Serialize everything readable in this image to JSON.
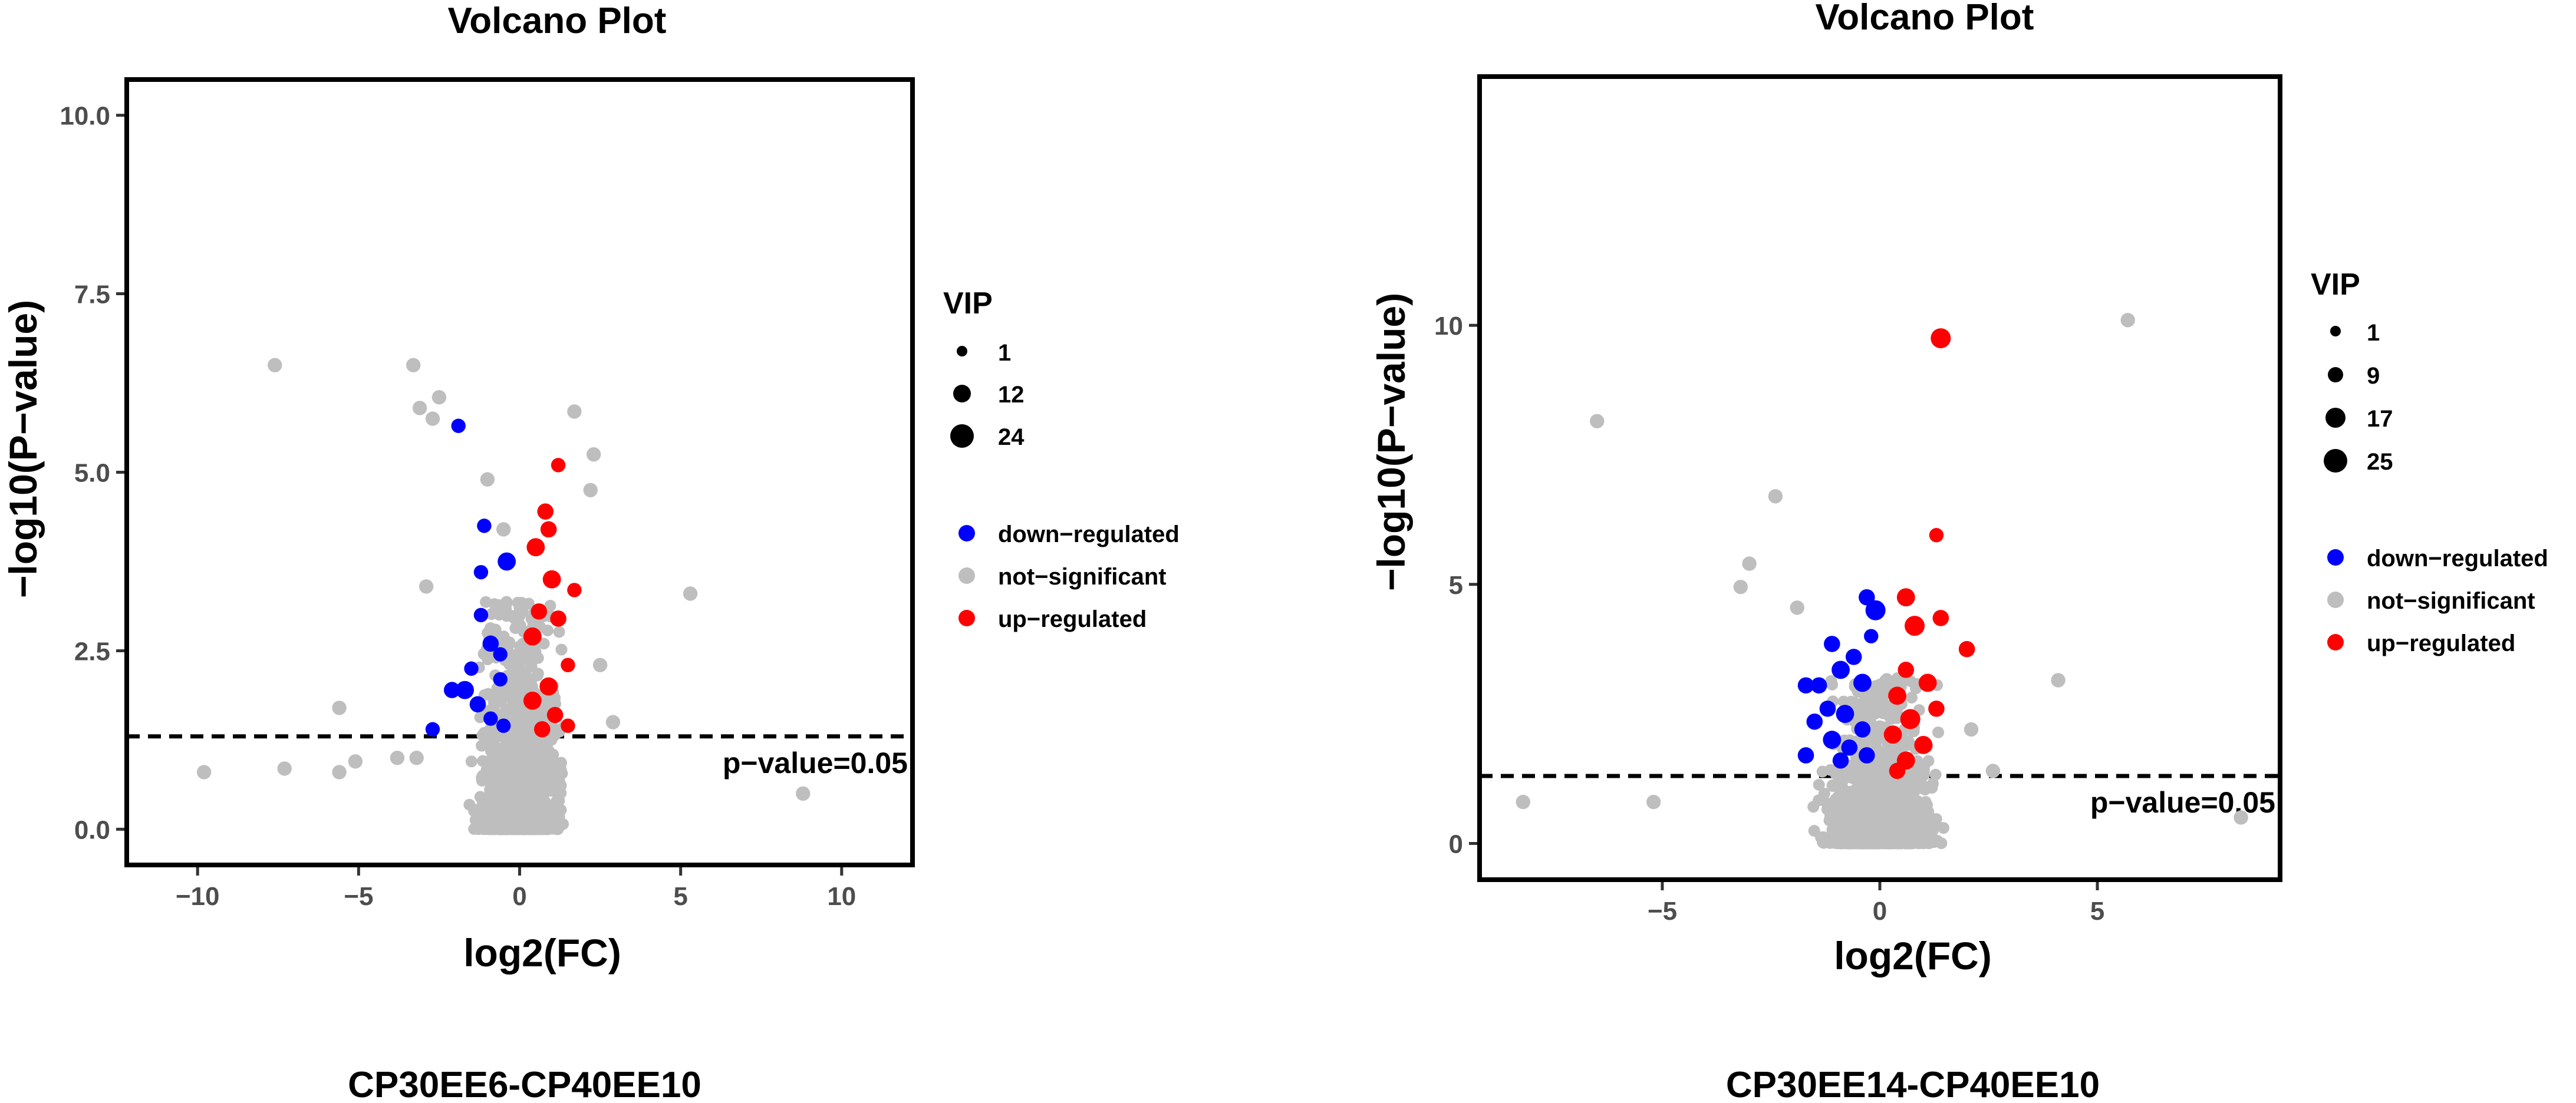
{
  "colors": {
    "down": "#0000FF",
    "ns": "#BEBEBE",
    "up": "#FF0000",
    "axis": "#000000",
    "tick_text": "#4D4D4D"
  },
  "chart_data": [
    {
      "type": "scatter",
      "title": "Volcano Plot",
      "xlabel": "log2(FC)",
      "ylabel": "−log10(P−value)",
      "caption": "CP30EE6-CP40EE10",
      "xlim": [
        -12.2,
        12.2
      ],
      "ylim": [
        -0.5,
        10.5
      ],
      "xticks": [
        -10,
        -5,
        0,
        5,
        10
      ],
      "xtick_labels": [
        "−10",
        "−5",
        "0",
        "5",
        "10"
      ],
      "yticks": [
        0,
        2.5,
        5,
        7.5,
        10
      ],
      "ytick_labels": [
        "0.0",
        "2.5",
        "5.0",
        "7.5",
        "10.0"
      ],
      "threshold": {
        "y": 1.301,
        "label": "p−value=0.05"
      },
      "size_legend": {
        "title": "VIP",
        "values": [
          "1",
          "12",
          "24"
        ]
      },
      "color_legend": [
        {
          "key": "down",
          "label": "down−regulated"
        },
        {
          "key": "ns",
          "label": "not−significant"
        },
        {
          "key": "up",
          "label": "up−regulated"
        }
      ],
      "highlighted_points": [
        {
          "x": -1.9,
          "y": 5.65,
          "group": "down",
          "vip": 4
        },
        {
          "x": -1.1,
          "y": 4.25,
          "group": "down",
          "vip": 4
        },
        {
          "x": -1.2,
          "y": 3.6,
          "group": "down",
          "vip": 4
        },
        {
          "x": -0.4,
          "y": 3.75,
          "group": "down",
          "vip": 8
        },
        {
          "x": -1.2,
          "y": 3.0,
          "group": "down",
          "vip": 4
        },
        {
          "x": -0.9,
          "y": 2.6,
          "group": "down",
          "vip": 6
        },
        {
          "x": -1.5,
          "y": 2.25,
          "group": "down",
          "vip": 4
        },
        {
          "x": -2.1,
          "y": 1.95,
          "group": "down",
          "vip": 6
        },
        {
          "x": -1.7,
          "y": 1.95,
          "group": "down",
          "vip": 8
        },
        {
          "x": -0.6,
          "y": 2.1,
          "group": "down",
          "vip": 4
        },
        {
          "x": -1.3,
          "y": 1.75,
          "group": "down",
          "vip": 6
        },
        {
          "x": -0.9,
          "y": 1.55,
          "group": "down",
          "vip": 4
        },
        {
          "x": -0.5,
          "y": 1.45,
          "group": "down",
          "vip": 4
        },
        {
          "x": -2.7,
          "y": 1.4,
          "group": "down",
          "vip": 4
        },
        {
          "x": -0.6,
          "y": 2.45,
          "group": "down",
          "vip": 4
        },
        {
          "x": 1.2,
          "y": 5.1,
          "group": "up",
          "vip": 4
        },
        {
          "x": 0.8,
          "y": 4.45,
          "group": "up",
          "vip": 6
        },
        {
          "x": 0.9,
          "y": 4.2,
          "group": "up",
          "vip": 6
        },
        {
          "x": 0.5,
          "y": 3.95,
          "group": "up",
          "vip": 8
        },
        {
          "x": 1.0,
          "y": 3.5,
          "group": "up",
          "vip": 8
        },
        {
          "x": 1.7,
          "y": 3.35,
          "group": "up",
          "vip": 4
        },
        {
          "x": 0.6,
          "y": 3.05,
          "group": "up",
          "vip": 6
        },
        {
          "x": 1.2,
          "y": 2.95,
          "group": "up",
          "vip": 6
        },
        {
          "x": 0.4,
          "y": 2.7,
          "group": "up",
          "vip": 8
        },
        {
          "x": 1.5,
          "y": 2.3,
          "group": "up",
          "vip": 4
        },
        {
          "x": 0.9,
          "y": 2.0,
          "group": "up",
          "vip": 8
        },
        {
          "x": 0.4,
          "y": 1.8,
          "group": "up",
          "vip": 8
        },
        {
          "x": 1.1,
          "y": 1.6,
          "group": "up",
          "vip": 6
        },
        {
          "x": 1.5,
          "y": 1.45,
          "group": "up",
          "vip": 4
        },
        {
          "x": 0.7,
          "y": 1.4,
          "group": "up",
          "vip": 6
        }
      ],
      "outlier_points": [
        {
          "x": -7.6,
          "y": 6.5,
          "group": "ns",
          "vip": 4
        },
        {
          "x": -3.3,
          "y": 6.5,
          "group": "ns",
          "vip": 4
        },
        {
          "x": -3.1,
          "y": 5.9,
          "group": "ns",
          "vip": 4
        },
        {
          "x": -2.7,
          "y": 5.75,
          "group": "ns",
          "vip": 4
        },
        {
          "x": -2.5,
          "y": 6.05,
          "group": "ns",
          "vip": 4
        },
        {
          "x": 1.7,
          "y": 5.85,
          "group": "ns",
          "vip": 4
        },
        {
          "x": 2.3,
          "y": 5.25,
          "group": "ns",
          "vip": 4
        },
        {
          "x": 2.2,
          "y": 4.75,
          "group": "ns",
          "vip": 4
        },
        {
          "x": 5.3,
          "y": 3.3,
          "group": "ns",
          "vip": 4
        },
        {
          "x": 8.8,
          "y": 0.5,
          "group": "ns",
          "vip": 4
        },
        {
          "x": -9.8,
          "y": 0.8,
          "group": "ns",
          "vip": 4
        },
        {
          "x": -7.3,
          "y": 0.85,
          "group": "ns",
          "vip": 4
        },
        {
          "x": -5.6,
          "y": 1.7,
          "group": "ns",
          "vip": 4
        },
        {
          "x": -5.1,
          "y": 0.95,
          "group": "ns",
          "vip": 4
        },
        {
          "x": -5.6,
          "y": 0.8,
          "group": "ns",
          "vip": 4
        },
        {
          "x": -3.8,
          "y": 1.0,
          "group": "ns",
          "vip": 4
        },
        {
          "x": -3.2,
          "y": 1.0,
          "group": "ns",
          "vip": 4
        },
        {
          "x": 2.9,
          "y": 1.5,
          "group": "ns",
          "vip": 4
        },
        {
          "x": -1.0,
          "y": 4.9,
          "group": "ns",
          "vip": 4
        },
        {
          "x": -0.5,
          "y": 4.2,
          "group": "ns",
          "vip": 4
        },
        {
          "x": -2.9,
          "y": 3.4,
          "group": "ns",
          "vip": 4
        },
        {
          "x": 2.5,
          "y": 2.3,
          "group": "ns",
          "vip": 4
        }
      ]
    },
    {
      "type": "scatter",
      "title": "Volcano Plot",
      "xlabel": "log2(FC)",
      "ylabel": "−log10(P−value)",
      "caption": "CP30EE14-CP40EE10",
      "xlim": [
        -9.2,
        9.2
      ],
      "ylim": [
        -0.7,
        14.8
      ],
      "xticks": [
        -5,
        0,
        5
      ],
      "xtick_labels": [
        "−5",
        "0",
        "5"
      ],
      "yticks": [
        0,
        5,
        10
      ],
      "ytick_labels": [
        "0",
        "5",
        "10"
      ],
      "threshold": {
        "y": 1.301,
        "label": "p−value=0.05"
      },
      "size_legend": {
        "title": "VIP",
        "values": [
          "1",
          "9",
          "17",
          "25"
        ]
      },
      "color_legend": [
        {
          "key": "down",
          "label": "down−regulated"
        },
        {
          "key": "ns",
          "label": "not−significant"
        },
        {
          "key": "up",
          "label": "up−regulated"
        }
      ],
      "highlighted_points": [
        {
          "x": -0.3,
          "y": 4.75,
          "group": "down",
          "vip": 6
        },
        {
          "x": -0.1,
          "y": 4.5,
          "group": "down",
          "vip": 10
        },
        {
          "x": -0.2,
          "y": 4.0,
          "group": "down",
          "vip": 4
        },
        {
          "x": -1.1,
          "y": 3.85,
          "group": "down",
          "vip": 6
        },
        {
          "x": -0.6,
          "y": 3.6,
          "group": "down",
          "vip": 6
        },
        {
          "x": -0.9,
          "y": 3.35,
          "group": "down",
          "vip": 8
        },
        {
          "x": -1.4,
          "y": 3.05,
          "group": "down",
          "vip": 6
        },
        {
          "x": -1.7,
          "y": 3.05,
          "group": "down",
          "vip": 6
        },
        {
          "x": -0.4,
          "y": 3.1,
          "group": "down",
          "vip": 8
        },
        {
          "x": -1.2,
          "y": 2.6,
          "group": "down",
          "vip": 6
        },
        {
          "x": -0.8,
          "y": 2.5,
          "group": "down",
          "vip": 8
        },
        {
          "x": -1.5,
          "y": 2.35,
          "group": "down",
          "vip": 6
        },
        {
          "x": -0.4,
          "y": 2.2,
          "group": "down",
          "vip": 6
        },
        {
          "x": -1.1,
          "y": 2.0,
          "group": "down",
          "vip": 8
        },
        {
          "x": -0.7,
          "y": 1.85,
          "group": "down",
          "vip": 6
        },
        {
          "x": -1.7,
          "y": 1.7,
          "group": "down",
          "vip": 6
        },
        {
          "x": -0.3,
          "y": 1.7,
          "group": "down",
          "vip": 6
        },
        {
          "x": -0.9,
          "y": 1.6,
          "group": "down",
          "vip": 6
        },
        {
          "x": 1.4,
          "y": 9.75,
          "group": "up",
          "vip": 10
        },
        {
          "x": 1.3,
          "y": 5.95,
          "group": "up",
          "vip": 4
        },
        {
          "x": 0.6,
          "y": 4.75,
          "group": "up",
          "vip": 8
        },
        {
          "x": 1.4,
          "y": 4.35,
          "group": "up",
          "vip": 6
        },
        {
          "x": 0.8,
          "y": 4.2,
          "group": "up",
          "vip": 10
        },
        {
          "x": 2.0,
          "y": 3.75,
          "group": "up",
          "vip": 6
        },
        {
          "x": 0.6,
          "y": 3.35,
          "group": "up",
          "vip": 6
        },
        {
          "x": 1.1,
          "y": 3.1,
          "group": "up",
          "vip": 8
        },
        {
          "x": 0.4,
          "y": 2.85,
          "group": "up",
          "vip": 8
        },
        {
          "x": 1.3,
          "y": 2.6,
          "group": "up",
          "vip": 6
        },
        {
          "x": 0.7,
          "y": 2.4,
          "group": "up",
          "vip": 10
        },
        {
          "x": 0.3,
          "y": 2.1,
          "group": "up",
          "vip": 8
        },
        {
          "x": 1.0,
          "y": 1.9,
          "group": "up",
          "vip": 8
        },
        {
          "x": 0.6,
          "y": 1.6,
          "group": "up",
          "vip": 8
        },
        {
          "x": 0.4,
          "y": 1.4,
          "group": "up",
          "vip": 6
        }
      ],
      "outlier_points": [
        {
          "x": 5.7,
          "y": 10.1,
          "group": "ns",
          "vip": 4
        },
        {
          "x": -6.5,
          "y": 8.15,
          "group": "ns",
          "vip": 4
        },
        {
          "x": -2.4,
          "y": 6.7,
          "group": "ns",
          "vip": 4
        },
        {
          "x": -3.0,
          "y": 5.4,
          "group": "ns",
          "vip": 4
        },
        {
          "x": -3.2,
          "y": 4.95,
          "group": "ns",
          "vip": 4
        },
        {
          "x": 4.1,
          "y": 3.15,
          "group": "ns",
          "vip": 4
        },
        {
          "x": 8.3,
          "y": 0.5,
          "group": "ns",
          "vip": 4
        },
        {
          "x": -8.2,
          "y": 0.8,
          "group": "ns",
          "vip": 4
        },
        {
          "x": -5.2,
          "y": 0.8,
          "group": "ns",
          "vip": 4
        },
        {
          "x": -1.9,
          "y": 4.55,
          "group": "ns",
          "vip": 4
        },
        {
          "x": 2.1,
          "y": 2.2,
          "group": "ns",
          "vip": 4
        },
        {
          "x": 2.6,
          "y": 1.4,
          "group": "ns",
          "vip": 4
        }
      ]
    }
  ]
}
